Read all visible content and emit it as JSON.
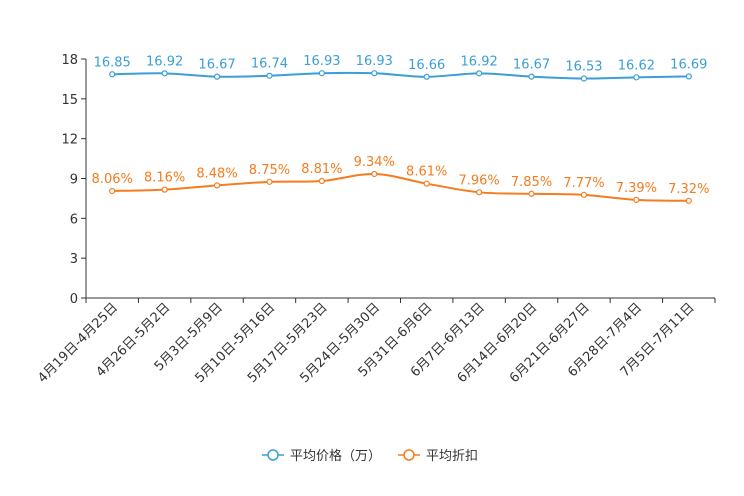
{
  "chart_data": {
    "type": "line",
    "title": "",
    "xlabel": "",
    "ylabel": "",
    "ylim": [
      0,
      18
    ],
    "yticks": [
      0,
      3,
      6,
      9,
      12,
      15,
      18
    ],
    "grid": false,
    "legend_position": "bottom",
    "categories": [
      "4月19日-4月25日",
      "4月26日-5月2日",
      "5月3日-5月9日",
      "5月10日-5月16日",
      "5月17日-5月23日",
      "5月24日-5月30日",
      "5月31日-6月6日",
      "6月7日-6月13日",
      "6月14日-6月20日",
      "6月21日-6月27日",
      "6月28日-7月4日",
      "7月5日-7月11日"
    ],
    "series": [
      {
        "name": "平均价格（万）",
        "color": "#3a9fd6",
        "values": [
          16.85,
          16.92,
          16.67,
          16.74,
          16.93,
          16.93,
          16.66,
          16.92,
          16.67,
          16.53,
          16.62,
          16.69
        ],
        "labels": [
          "16.85",
          "16.92",
          "16.67",
          "16.74",
          "16.93",
          "16.93",
          "16.66",
          "16.92",
          "16.67",
          "16.53",
          "16.62",
          "16.69"
        ]
      },
      {
        "name": "平均折扣",
        "color": "#f57c1f",
        "values": [
          8.06,
          8.16,
          8.48,
          8.75,
          8.81,
          9.34,
          8.61,
          7.96,
          7.85,
          7.77,
          7.39,
          7.32
        ],
        "labels": [
          "8.06%",
          "8.16%",
          "8.48%",
          "8.75%",
          "8.81%",
          "9.34%",
          "8.61%",
          "7.96%",
          "7.85%",
          "7.77%",
          "7.39%",
          "7.32%"
        ]
      }
    ]
  }
}
